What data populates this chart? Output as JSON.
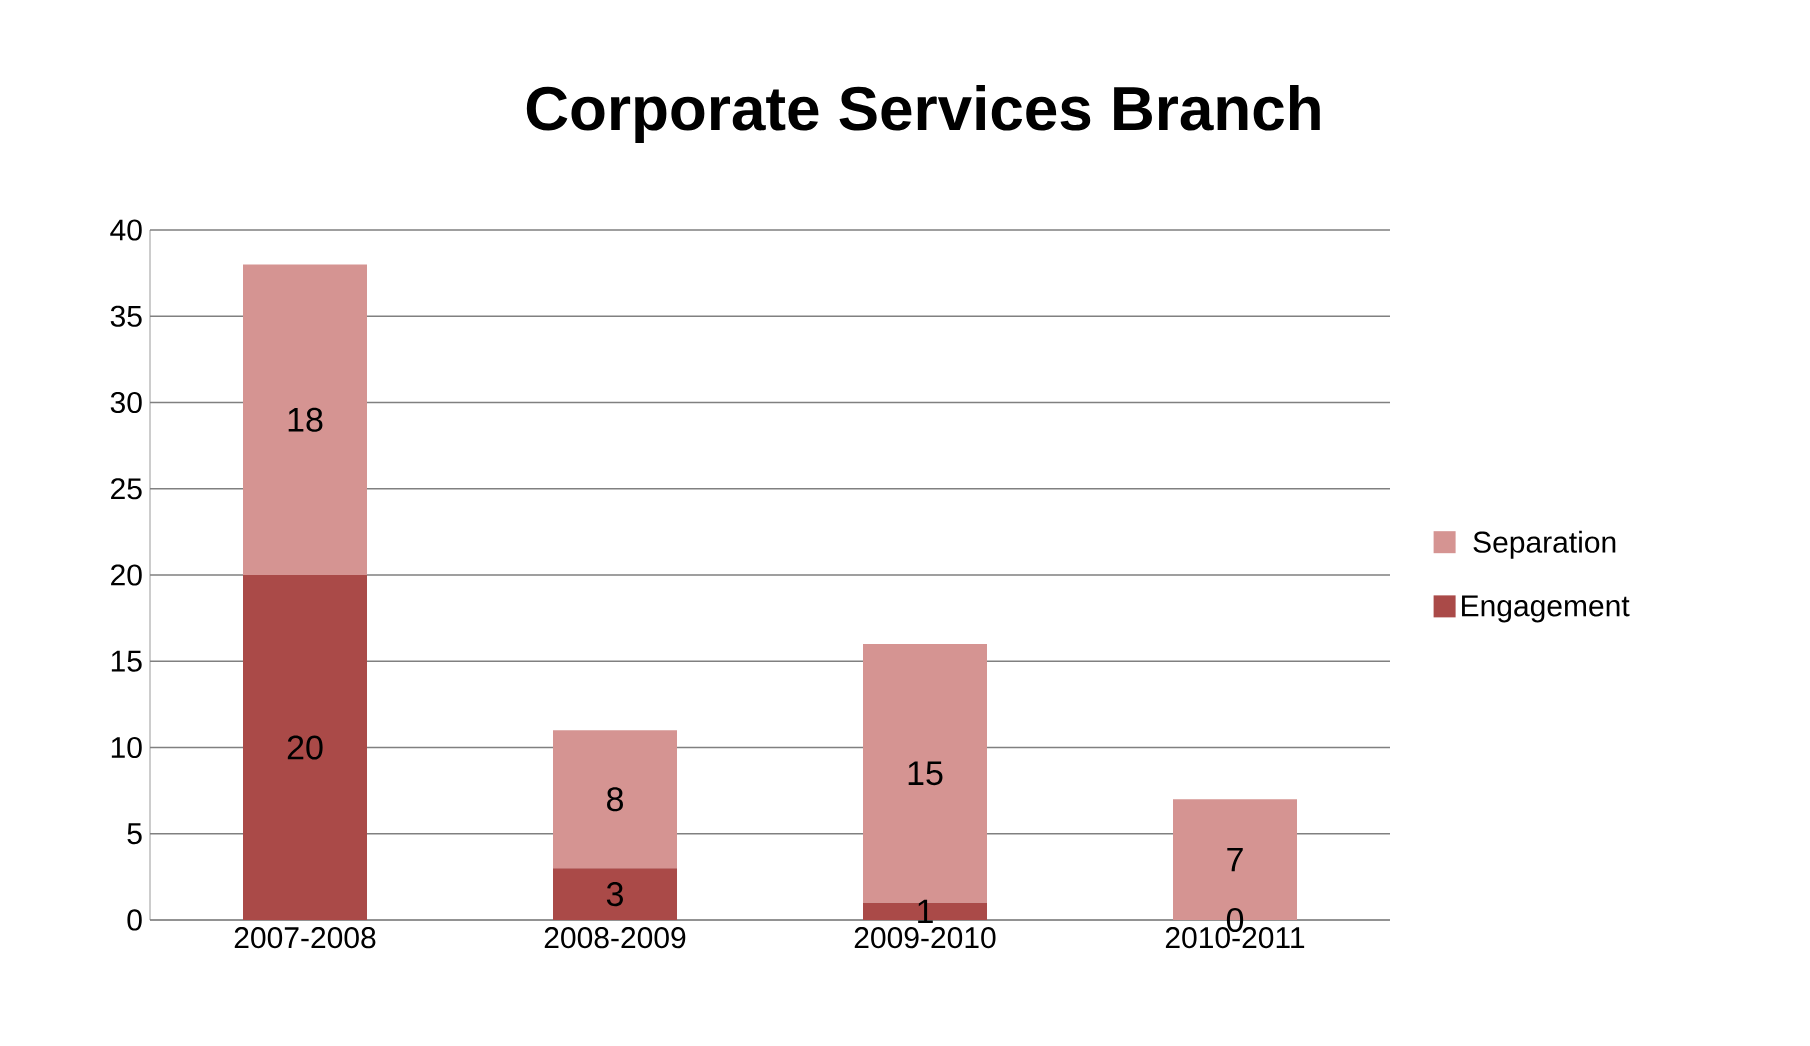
{
  "chart_data": {
    "type": "bar",
    "title": "Corporate Services Branch",
    "categories": [
      "2007-2008",
      "2008-2009",
      "2009-2010",
      "2010-2011"
    ],
    "stacked": true,
    "series": [
      {
        "name": "Engagement",
        "color": "#aa4a48",
        "values": [
          20,
          3,
          1,
          0
        ]
      },
      {
        "name": "Separation",
        "color": "#d59492",
        "values": [
          18,
          8,
          15,
          7
        ]
      }
    ],
    "ylim": [
      0,
      40
    ],
    "yticks": [
      0,
      5,
      10,
      15,
      20,
      25,
      30,
      35,
      40
    ],
    "grid": "y",
    "legend": "right",
    "data_labels": true
  }
}
